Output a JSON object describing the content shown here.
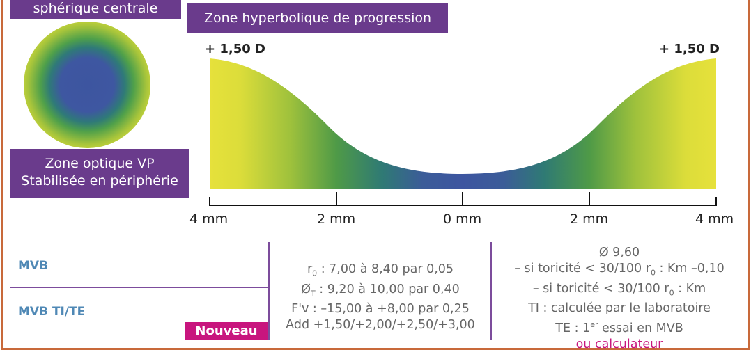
{
  "labels": {
    "top": "sphérique centrale",
    "zone": "Zone hyperbolique de progression",
    "vp_line1": "Zone optique VP",
    "vp_line2": "Stabilisée en périphérie"
  },
  "diopter_left": "+ 1,50 D",
  "diopter_right": "+ 1,50 D",
  "axis_ticks": [
    "4 mm",
    "2 mm",
    "0 mm",
    "2 mm",
    "4 mm"
  ],
  "table": {
    "row1_label": "MVB",
    "row2_label": "MVB TI/TE",
    "badge": "Nouveau",
    "middle": {
      "line1": "r",
      "line1_sub": "0",
      "line1_rest": " : 7,00 à 8,40 par 0,05",
      "line2": "Ø",
      "line2_sub": "T",
      "line2_rest": " : 9,20 à 10,00 par 0,40",
      "line3": "F'v : –15,00 à +8,00 par 0,25",
      "line4": "Add +1,50/+2,00/+2,50/+3,00"
    },
    "right": {
      "line1": "Ø 9,60",
      "line2": "– si toricité < 30/100 r",
      "line2_sub": "0",
      "line2_rest": " : Km –0,10",
      "line3": "– si toricité < 30/100 r",
      "line3_sub": "0",
      "line3_rest": " : Km",
      "line4": "TI : calculée par le laboratoire",
      "line5": "TE : 1",
      "line5_sup": "er",
      "line5_rest": " essai en MVB",
      "line6": "ou calculateur"
    }
  },
  "colors": {
    "purple": "#6a3b8c",
    "magenta": "#c8157e",
    "blue_label": "#4f88b5",
    "border": "#c8693a"
  }
}
